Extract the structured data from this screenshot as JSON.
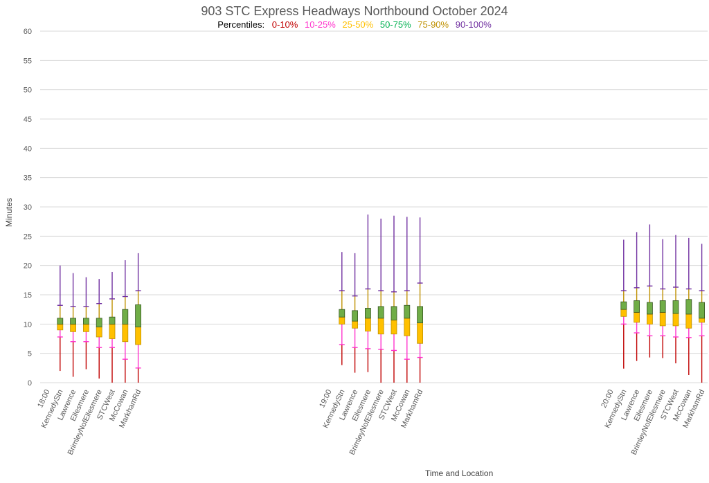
{
  "chart_data": {
    "type": "box",
    "title": "903 STC Express Headways Northbound October 2024",
    "legend": {
      "prefix": "Percentiles:",
      "items": [
        {
          "label": "0-10%",
          "color": "#c00000"
        },
        {
          "label": "10-25%",
          "color": "#ff33cc"
        },
        {
          "label": "25-50%",
          "color": "#ffc000"
        },
        {
          "label": "50-75%",
          "color": "#00b050"
        },
        {
          "label": "75-90%",
          "color": "#bf9000"
        },
        {
          "label": "90-100%",
          "color": "#7030a0"
        }
      ]
    },
    "xlabel": "Time and Location",
    "ylabel": "Minutes",
    "ylim": [
      0,
      60
    ],
    "yticks": [
      0,
      5,
      10,
      15,
      20,
      25,
      30,
      35,
      40,
      45,
      50,
      55,
      60
    ],
    "grid": true,
    "colors": {
      "p0_10": "#c00000",
      "p10_25": "#ff33cc",
      "p25_50_box": "#ffc000",
      "p50_75_box": "#70ad47",
      "p75_90": "#bf9000",
      "p90_100": "#7030a0",
      "box_border": "#375623",
      "grid": "#d9d9d9"
    },
    "groups": [
      {
        "time": "18:00",
        "stops": [
          {
            "name": "KennedyStn",
            "min": 2,
            "p10": 7.8,
            "p25": 9,
            "p50": 10,
            "p75": 11,
            "p90": 13.2,
            "max": 20
          },
          {
            "name": "Lawrence",
            "min": 1,
            "p10": 7,
            "p25": 8.7,
            "p50": 10,
            "p75": 11,
            "p90": 13,
            "max": 18.7
          },
          {
            "name": "Ellesmere",
            "min": 2.3,
            "p10": 7,
            "p25": 8.7,
            "p50": 10,
            "p75": 11,
            "p90": 13,
            "max": 18
          },
          {
            "name": "BrimleyNofEllesmere",
            "min": 0.7,
            "p10": 6,
            "p25": 7.8,
            "p50": 9.5,
            "p75": 11,
            "p90": 13.5,
            "max": 17.7
          },
          {
            "name": "STCWest",
            "min": 0,
            "p10": 6,
            "p25": 7.5,
            "p50": 10,
            "p75": 11.2,
            "p90": 14.3,
            "max": 18.9
          },
          {
            "name": "McCowan",
            "min": 0,
            "p10": 4,
            "p25": 7,
            "p50": 10,
            "p75": 12.5,
            "p90": 14.7,
            "max": 20.9
          },
          {
            "name": "MarkhamRd",
            "min": 0,
            "p10": 2.5,
            "p25": 6.5,
            "p50": 9.5,
            "p75": 13.3,
            "p90": 15.7,
            "max": 22.1
          }
        ]
      },
      {
        "time": "19:00",
        "stops": [
          {
            "name": "KennedyStn",
            "min": 3,
            "p10": 6.5,
            "p25": 10,
            "p50": 11.2,
            "p75": 12.5,
            "p90": 15.7,
            "max": 22.3
          },
          {
            "name": "Lawrence",
            "min": 1.7,
            "p10": 6,
            "p25": 9.3,
            "p50": 10.5,
            "p75": 12.3,
            "p90": 14.8,
            "max": 22.1
          },
          {
            "name": "Ellesmere",
            "min": 1.8,
            "p10": 5.8,
            "p25": 8.8,
            "p50": 11,
            "p75": 12.7,
            "p90": 16,
            "max": 28.7
          },
          {
            "name": "BrimleyNofEllesmere",
            "min": 0,
            "p10": 5.7,
            "p25": 8.3,
            "p50": 11,
            "p75": 13,
            "p90": 15.7,
            "max": 28
          },
          {
            "name": "STCWest",
            "min": 0,
            "p10": 5.5,
            "p25": 8.3,
            "p50": 10.7,
            "p75": 13,
            "p90": 15.5,
            "max": 28.5
          },
          {
            "name": "McCowan",
            "min": 0,
            "p10": 4,
            "p25": 8,
            "p50": 11,
            "p75": 13.2,
            "p90": 15.7,
            "max": 28.3
          },
          {
            "name": "MarkhamRd",
            "min": 0,
            "p10": 4.3,
            "p25": 6.7,
            "p50": 10.2,
            "p75": 13,
            "p90": 17,
            "max": 28.2
          }
        ]
      },
      {
        "time": "20:00",
        "stops": [
          {
            "name": "KennedyStn",
            "min": 2.4,
            "p10": 10,
            "p25": 11.3,
            "p50": 12.5,
            "p75": 13.8,
            "p90": 15.7,
            "max": 24.4
          },
          {
            "name": "Lawrence",
            "min": 3.7,
            "p10": 8.5,
            "p25": 10.3,
            "p50": 12,
            "p75": 14,
            "p90": 16.2,
            "max": 25.7
          },
          {
            "name": "Ellesmere",
            "min": 4.3,
            "p10": 8,
            "p25": 10,
            "p50": 11.7,
            "p75": 13.7,
            "p90": 16.5,
            "max": 27
          },
          {
            "name": "BrimleyNofEllesmere",
            "min": 4.2,
            "p10": 8,
            "p25": 9.7,
            "p50": 12,
            "p75": 14,
            "p90": 16,
            "max": 24.5
          },
          {
            "name": "STCWest",
            "min": 3.3,
            "p10": 7.8,
            "p25": 9.7,
            "p50": 11.8,
            "p75": 14,
            "p90": 16.3,
            "max": 25.2
          },
          {
            "name": "McCowan",
            "min": 1.3,
            "p10": 7.7,
            "p25": 9.3,
            "p50": 11.7,
            "p75": 14.2,
            "p90": 16,
            "max": 24.7
          },
          {
            "name": "MarkhamRd",
            "min": 0,
            "p10": 8,
            "p25": 10.3,
            "p50": 11,
            "p75": 13.7,
            "p90": 15.7,
            "max": 23.7
          }
        ]
      }
    ]
  }
}
